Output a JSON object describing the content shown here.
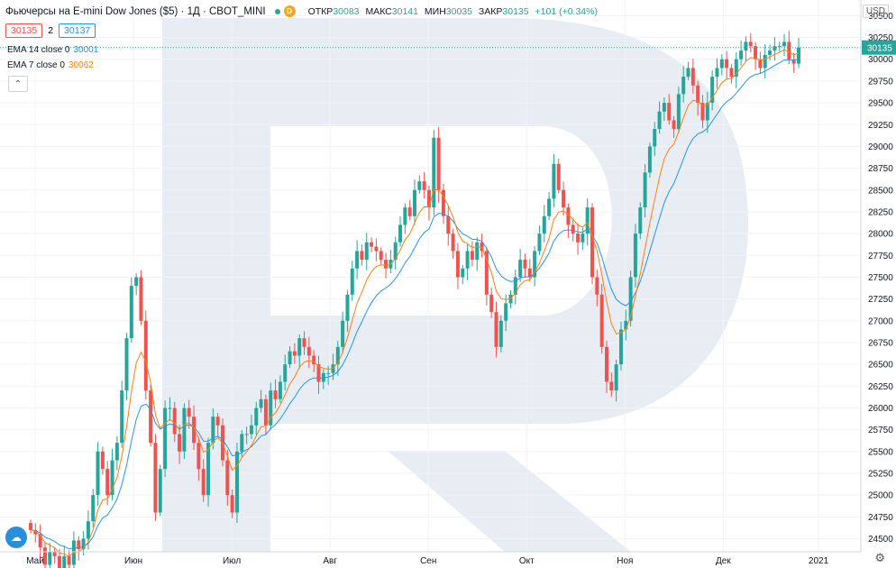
{
  "header": {
    "title": "Фьючерсы на E-mini Dow Jones ($5) · 1Д · CBOT_MINI",
    "ohlc": [
      {
        "label": "ОТКР",
        "value": "30083"
      },
      {
        "label": "МАКС",
        "value": "30141"
      },
      {
        "label": "МИН",
        "value": "30035"
      },
      {
        "label": "ЗАКР",
        "value": "30135"
      },
      {
        "label": "",
        "value": "+101 (+0.34%)"
      }
    ],
    "bid": "30135",
    "spread": "2",
    "ask": "30137"
  },
  "indicators": [
    {
      "label": "EMA 14 close 0",
      "value": "30001",
      "color": "#2196f3"
    },
    {
      "label": "EMA 7 close 0",
      "value": "30062",
      "color": "#ff7f0e"
    }
  ],
  "currency": "USD",
  "current_price_label": "30135",
  "chart_data": {
    "type": "candlestick",
    "x_axis_labels": [
      "Май",
      "Июн",
      "Июл",
      "Авг",
      "Сен",
      "Окт",
      "Ноя",
      "Дек",
      "2021"
    ],
    "y_ticks": [
      24500,
      24750,
      25000,
      25250,
      25500,
      25750,
      26000,
      26250,
      26500,
      26750,
      27000,
      27250,
      27500,
      27750,
      28000,
      28250,
      28500,
      28750,
      29000,
      29250,
      29500,
      29750,
      30000,
      30250,
      30500
    ],
    "ylim": [
      24350,
      30680
    ],
    "close": [
      24600,
      24550,
      24400,
      24200,
      24350,
      24300,
      24150,
      24300,
      24200,
      24480,
      24380,
      24500,
      24700,
      25000,
      25500,
      25300,
      25000,
      25400,
      25600,
      26200,
      26800,
      27400,
      27500,
      27000,
      26200,
      25600,
      24800,
      25300,
      26000,
      26000,
      25700,
      25500,
      26000,
      25900,
      25600,
      25300,
      25000,
      25600,
      25900,
      25800,
      25400,
      25000,
      24800,
      25500,
      25700,
      25700,
      25800,
      26000,
      26100,
      25800,
      26200,
      26100,
      26300,
      26500,
      26650,
      26600,
      26800,
      26700,
      26600,
      26500,
      26300,
      26400,
      26400,
      26500,
      26700,
      27000,
      27300,
      27600,
      27800,
      27700,
      27900,
      27850,
      27800,
      27700,
      27600,
      27700,
      27900,
      28100,
      28300,
      28200,
      28500,
      28600,
      28500,
      28300,
      29100,
      28500,
      28200,
      28000,
      27800,
      27500,
      27600,
      27800,
      27700,
      27900,
      27800,
      27300,
      27100,
      26700,
      27000,
      27200,
      27300,
      27500,
      27700,
      27600,
      27500,
      27800,
      28000,
      28200,
      28400,
      28800,
      28500,
      28300,
      28100,
      28000,
      27900,
      28000,
      28300,
      27500,
      27300,
      26700,
      26300,
      26200,
      26500,
      26900,
      27000,
      27500,
      28000,
      28300,
      28700,
      29000,
      29200,
      29400,
      29500,
      29300,
      29200,
      29600,
      29800,
      29900,
      29700,
      29500,
      29300,
      29500,
      29800,
      29900,
      30000,
      29900,
      29800,
      30000,
      30100,
      30200,
      30150,
      30000,
      29900,
      30050,
      30100,
      30150,
      30150,
      30200,
      30000,
      29950,
      30135
    ],
    "ema14_last": 30001,
    "ema7_last": 30062
  }
}
